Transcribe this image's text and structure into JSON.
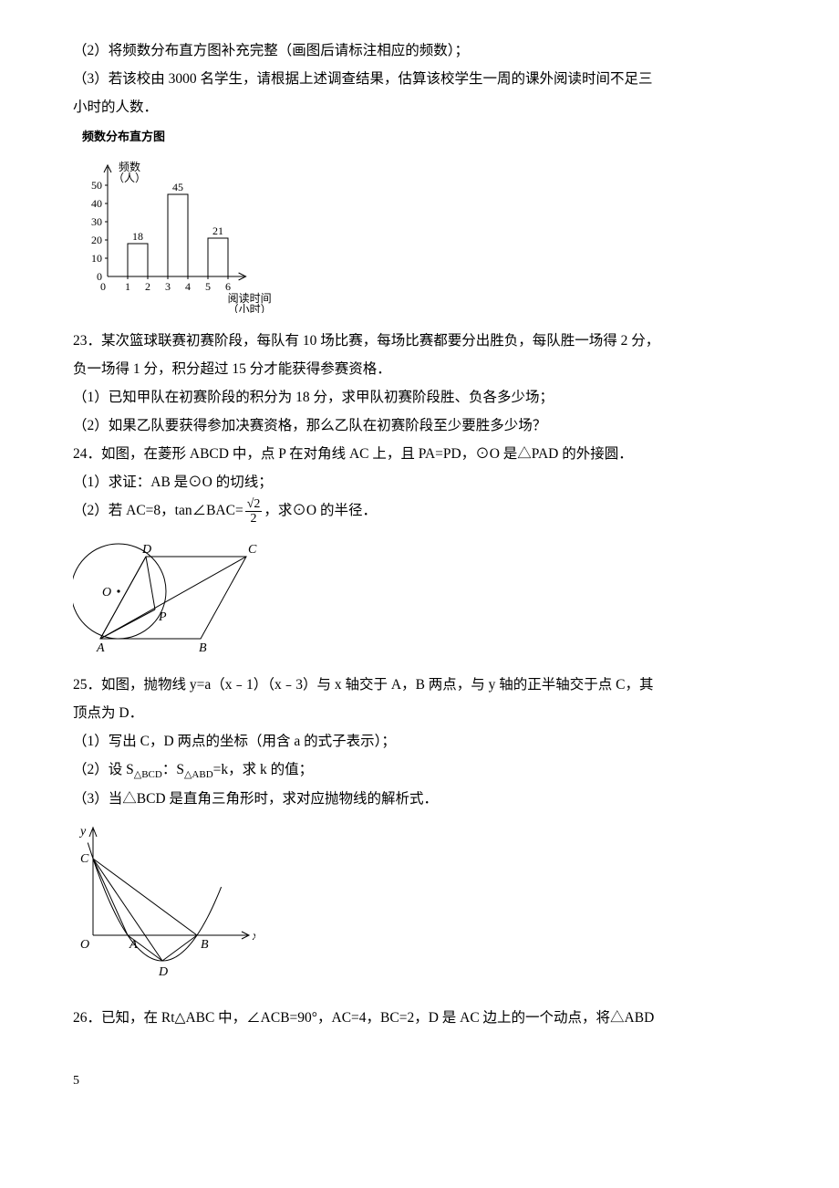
{
  "q22": {
    "line2": "（2）将频数分布直方图补充完整（画图后请标注相应的频数）；",
    "line3a": "（3）若该校由 3000 名学生，请根据上述调查结果，估算该校学生一周的课外阅读时间不足三",
    "line3b": "小时的人数．",
    "chart": {
      "title": "频数分布直方图",
      "y_label": "频数",
      "y_unit": "（人）",
      "x_label1": "阅读时间",
      "x_label2": "（小时）",
      "y_ticks": [
        0,
        10,
        20,
        30,
        40,
        50
      ],
      "x_ticks": [
        0,
        1,
        2,
        3,
        4,
        5,
        6
      ],
      "bars": [
        {
          "x0": 1,
          "x1": 2,
          "h": 18,
          "label": "18"
        },
        {
          "x0": 3,
          "x1": 4,
          "h": 45,
          "label": "45"
        },
        {
          "x0": 5,
          "x1": 6,
          "h": 21,
          "label": "21"
        }
      ],
      "axis_color": "#000000",
      "bar_fill": "#ffffff",
      "bar_stroke": "#000000"
    }
  },
  "q23": {
    "stem1": "23．某次篮球联赛初赛阶段，每队有 10 场比赛，每场比赛都要分出胜负，每队胜一场得 2 分，",
    "stem2": "负一场得 1 分，积分超过 15 分才能获得参赛资格．",
    "p1": "（1）已知甲队在初赛阶段的积分为 18 分，求甲队初赛阶段胜、负各多少场；",
    "p2": "（2）如果乙队要获得参加决赛资格，那么乙队在初赛阶段至少要胜多少场？"
  },
  "q24": {
    "stem": "24．如图，在菱形 ABCD 中，点 P 在对角线 AC 上，且 PA=PD，⊙O 是△PAD 的外接圆．",
    "p1": "（1）求证：AB 是⊙O 的切线；",
    "p2a": "（2）若 AC=8，tan∠BAC=",
    "p2b": "，求⊙O 的半径．",
    "frac_num": "√2",
    "frac_den": "2",
    "fig": {
      "A": "A",
      "B": "B",
      "C": "C",
      "D": "D",
      "P": "P",
      "O": "O"
    }
  },
  "q25": {
    "stem1": "25．如图，抛物线 y=a（x﹣1）（x﹣3）与 x 轴交于 A，B 两点，与 y 轴的正半轴交于点 C，其",
    "stem2": "顶点为 D．",
    "p1": "（1）写出 C，D 两点的坐标（用含 a 的式子表示）；",
    "p2a": "（2）设 S",
    "p2b": "：S",
    "p2c": "=k，求 k 的值；",
    "sub1": "△BCD",
    "sub2": "△ABD",
    "p3": "（3）当△BCD 是直角三角形时，求对应抛物线的解析式．",
    "fig": {
      "O": "O",
      "A": "A",
      "B": "B",
      "C": "C",
      "D": "D",
      "x": "x",
      "y": "y"
    }
  },
  "q26": {
    "stem": "26．已知，在 Rt△ABC 中，∠ACB=90°，AC=4，BC=2，D 是 AC 边上的一个动点，将△ABD"
  },
  "pagenum": "5"
}
